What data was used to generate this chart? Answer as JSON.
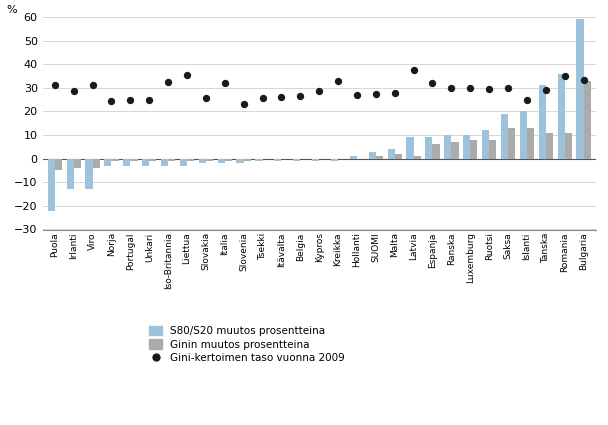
{
  "countries": [
    "Puola",
    "Irlanti",
    "Viro",
    "Norja",
    "Portugal",
    "Unkari",
    "Iso-Britannia",
    "Liettua",
    "Slovakia",
    "Italia",
    "Slovenia",
    "Tsekki",
    "Itävalta",
    "Belgia",
    "Kypros",
    "Kreikka",
    "Hollanti",
    "SUOMI",
    "Malta",
    "Latvia",
    "Espanja",
    "Ranska",
    "Luxemburg",
    "Ruotsi",
    "Saksa",
    "Islanti",
    "Tanska",
    "Romania",
    "Bulgaria"
  ],
  "s80s20_change": [
    -22,
    -13,
    -13,
    -3,
    -3,
    -3,
    -3,
    -3,
    -2,
    -2,
    -2,
    -1,
    -1,
    -1,
    -1,
    -1,
    1,
    3,
    4,
    9,
    9,
    10,
    10,
    12,
    19,
    20,
    31,
    36,
    59
  ],
  "gini_change": [
    -5,
    -4,
    -4,
    -1,
    -1,
    -1,
    -1,
    -1,
    -1,
    -1,
    -1,
    0,
    0,
    0,
    0,
    0,
    0,
    1,
    2,
    1,
    6,
    7,
    8,
    8,
    13,
    13,
    11,
    11,
    33
  ],
  "gini_level": [
    31,
    28.5,
    31,
    24.5,
    25,
    25,
    32.5,
    35.5,
    25.5,
    32,
    23,
    25.5,
    26,
    26.5,
    28.5,
    33,
    27,
    27.5,
    28,
    37.5,
    32,
    30,
    30,
    29.5,
    30,
    25,
    29,
    35,
    33.5
  ],
  "bar_color_s80": "#9DC3DC",
  "bar_color_gini": "#ABABAB",
  "dot_color": "#1A1A1A",
  "ylim": [
    -30,
    60
  ],
  "yticks": [
    -30,
    -20,
    -10,
    0,
    10,
    20,
    30,
    40,
    50,
    60
  ],
  "ylabel": "%",
  "legend_s80": "S80/S20 muutos prosentteina",
  "legend_gini_change": "Ginin muutos prosentteina",
  "legend_gini_level": "Gini-kertoimen taso vuonna 2009",
  "figsize": [
    6.08,
    4.25
  ],
  "dpi": 100
}
